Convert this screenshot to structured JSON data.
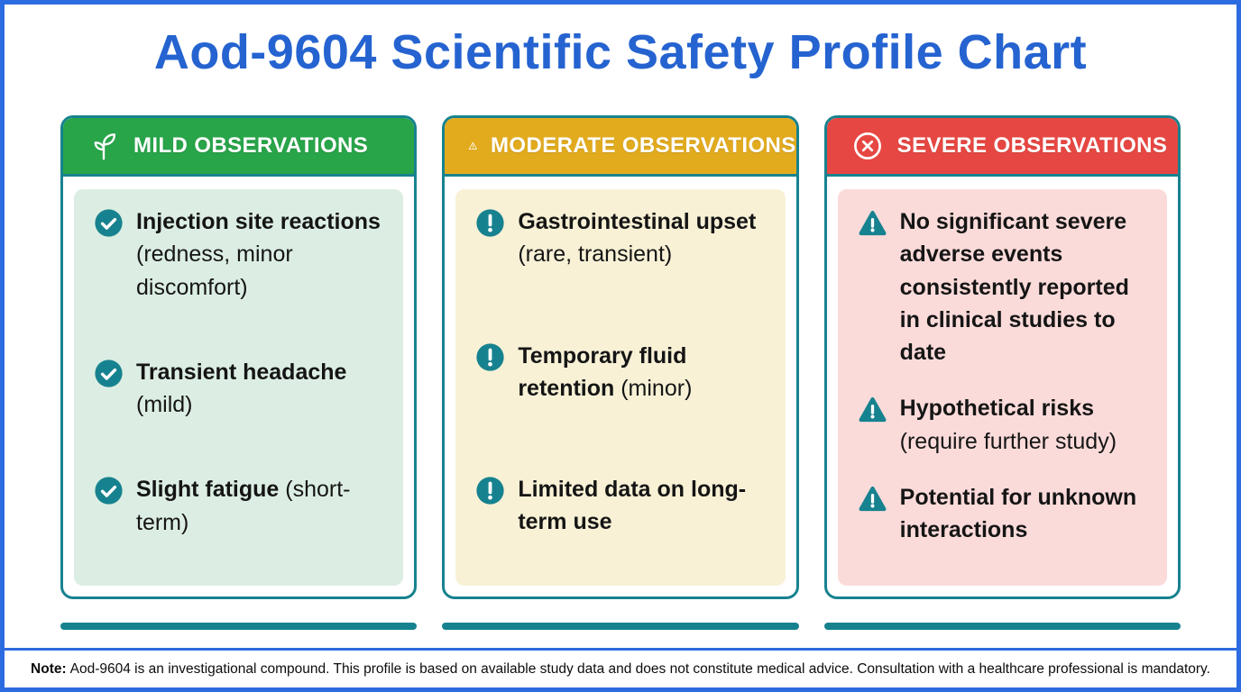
{
  "page": {
    "title": "Aod-9604 Scientific Safety Profile Chart",
    "note_label": "Note:",
    "note_text": "Aod-9604 is an investigational compound. This profile is based on available study data and does not constitute medical advice. Consultation with a healthcare professional is mandatory."
  },
  "colors": {
    "frame_blue": "#2d6be0",
    "title_blue": "#2563d0",
    "teal_accent": "#17828f",
    "mild_header": "#28a449",
    "moderate_header": "#e2ab1e",
    "severe_header": "#e74742",
    "mild_body": "#dceee3",
    "moderate_body": "#f8f1d6",
    "severe_body": "#fbdbda"
  },
  "columns": [
    {
      "id": "mild",
      "header_label": "MILD OBSERVATIONS",
      "header_icon": "sprout-icon",
      "header_color": "#28a449",
      "body_color": "#dceee3",
      "item_icon": "check-circle-icon",
      "items": [
        {
          "bold": "Injection site reactions",
          "normal": " (redness, minor discomfort)"
        },
        {
          "bold": "Transient headache",
          "normal": " (mild)"
        },
        {
          "bold": "Slight fatigue",
          "normal": " (short-term)"
        }
      ]
    },
    {
      "id": "moderate",
      "header_label": "MODERATE OBSERVATIONS",
      "header_icon": "warning-triangle-outline-icon",
      "header_color": "#e2ab1e",
      "body_color": "#f8f1d6",
      "item_icon": "exclamation-circle-icon",
      "items": [
        {
          "bold": "Gastrointestinal upset",
          "normal": " (rare, transient)"
        },
        {
          "bold": "Temporary fluid retention",
          "normal": " (minor)"
        },
        {
          "bold": "Limited data on long-term use",
          "normal": ""
        }
      ]
    },
    {
      "id": "severe",
      "header_label": "SEVERE OBSERVATIONS",
      "header_icon": "x-circle-icon",
      "header_color": "#e74742",
      "body_color": "#fbdbda",
      "item_icon": "warning-triangle-icon",
      "items": [
        {
          "bold": "No significant severe adverse events consistently reported in clinical studies to date",
          "normal": ""
        },
        {
          "bold": "Hypothetical risks",
          "normal": " (require further study)"
        },
        {
          "bold": "Potential for unknown interactions",
          "normal": ""
        }
      ]
    }
  ]
}
